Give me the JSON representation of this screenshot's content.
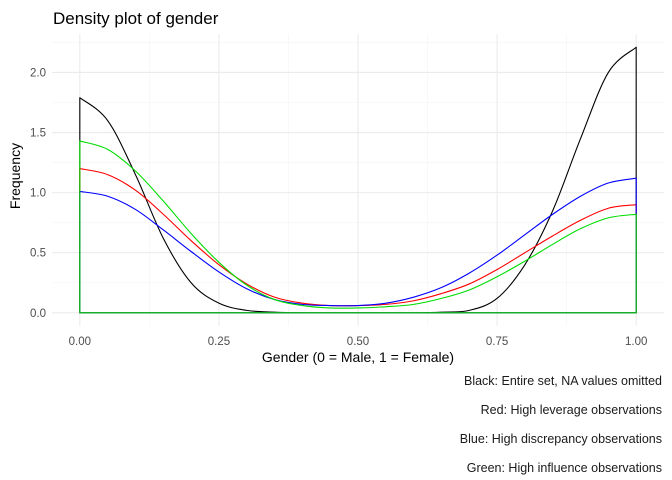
{
  "chart_data": {
    "type": "area",
    "title": "Density plot of gender",
    "xlabel": "Gender (0 = Male, 1 = Female)",
    "ylabel": "Frequency",
    "xlim": [
      -0.05,
      1.05
    ],
    "ylim": [
      -0.11,
      2.32
    ],
    "x_ticks": [
      0,
      0.25,
      0.5,
      0.75,
      1
    ],
    "x_tick_labels": [
      "0.00",
      "0.25",
      "0.50",
      "0.75",
      "1.00"
    ],
    "y_ticks": [
      0,
      0.5,
      1,
      1.5,
      2
    ],
    "y_tick_labels": [
      "0.0",
      "0.5",
      "1.0",
      "1.5",
      "2.0"
    ],
    "grid": true,
    "x": [
      0,
      0.05,
      0.1,
      0.15,
      0.2,
      0.25,
      0.3,
      0.35,
      0.4,
      0.45,
      0.5,
      0.55,
      0.6,
      0.65,
      0.7,
      0.75,
      0.8,
      0.85,
      0.9,
      0.95,
      1
    ],
    "series": [
      {
        "color": "#000000",
        "values": [
          1.79,
          1.6,
          1.15,
          0.62,
          0.25,
          0.08,
          0.02,
          0.005,
          0,
          0,
          0,
          0,
          0,
          0.005,
          0.02,
          0.12,
          0.4,
          0.85,
          1.45,
          2.0,
          2.21
        ]
      },
      {
        "color": "#ff0000",
        "values": [
          1.2,
          1.15,
          1.02,
          0.82,
          0.6,
          0.4,
          0.24,
          0.13,
          0.08,
          0.06,
          0.06,
          0.07,
          0.1,
          0.16,
          0.24,
          0.36,
          0.5,
          0.64,
          0.77,
          0.87,
          0.9
        ]
      },
      {
        "color": "#0000ff",
        "values": [
          1.01,
          0.97,
          0.86,
          0.69,
          0.51,
          0.34,
          0.2,
          0.11,
          0.07,
          0.06,
          0.06,
          0.08,
          0.13,
          0.21,
          0.33,
          0.48,
          0.65,
          0.82,
          0.97,
          1.08,
          1.12
        ]
      },
      {
        "color": "#00dd00",
        "values": [
          1.43,
          1.36,
          1.18,
          0.93,
          0.66,
          0.42,
          0.23,
          0.11,
          0.06,
          0.04,
          0.04,
          0.05,
          0.07,
          0.12,
          0.19,
          0.3,
          0.43,
          0.57,
          0.7,
          0.79,
          0.82
        ]
      }
    ],
    "captions": [
      "Black: Entire set, NA values omitted",
      "Red: High leverage observations",
      "Blue: High discrepancy observations",
      "Green: High influence observations"
    ]
  }
}
